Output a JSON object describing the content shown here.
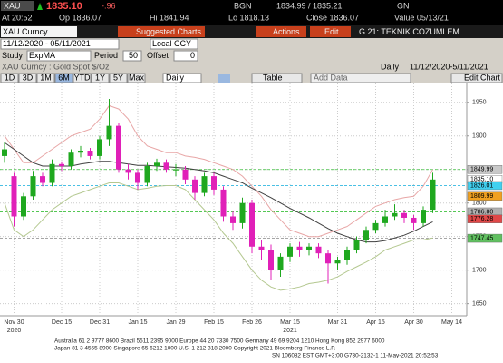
{
  "header": {
    "ticker": "XAU",
    "price": "1835.10",
    "change": "-.96",
    "source": "BGN",
    "bid_ask": "1834.99 / 1835.21",
    "source2": "GN",
    "at": "At 20:52",
    "open": "Op 1836.07",
    "high": "Hi 1841.94",
    "low": "Lo 1818.13",
    "close": "Close 1836.07",
    "value_date": "Value 05/13/21"
  },
  "toolbar": {
    "security": "XAU Curncy",
    "menu": [
      "Suggested Charts",
      "Actions",
      "Edit"
    ],
    "page_title": "G 21: TEKNIK COZUMLEM...",
    "date_range": "11/12/2020 - 05/11/2021",
    "currency": "Local CCY",
    "study_label": "Study",
    "study": "ExpMA",
    "period_label": "Period",
    "period": "50",
    "offset_label": "Offset",
    "offset": "0",
    "chart_caption": "XAU Curncy : Gold Spot  $/Oz",
    "frequency": "Daily",
    "range_caption": "11/12/2020-5/11/2021",
    "buttons": [
      "1D",
      "3D",
      "1M",
      "6M",
      "YTD",
      "1Y",
      "5Y",
      "Max"
    ],
    "frequency_select": "Daily",
    "table": "Table",
    "add_data": "Add Data",
    "edit_chart": "Edit Chart"
  },
  "chart_data": {
    "type": "candlestick",
    "categories": [
      null,
      "Nov 30",
      null,
      null,
      null,
      null,
      "Dec 15",
      null,
      null,
      null,
      "Dec 31",
      null,
      null,
      null,
      "Jan 15",
      null,
      null,
      null,
      "Jan 29",
      null,
      null,
      null,
      "Feb 15",
      null,
      null,
      null,
      "Feb 26",
      null,
      null,
      null,
      "Mar 15",
      null,
      null,
      null,
      null,
      "Mar 31",
      null,
      null,
      null,
      "Apr 15",
      null,
      null,
      null,
      "Apr 30",
      null,
      null,
      null,
      "May 14"
    ],
    "x_sublabels": [
      null,
      "2020",
      null,
      null,
      null,
      null,
      null,
      null,
      null,
      null,
      null,
      null,
      null,
      null,
      null,
      null,
      null,
      null,
      null,
      null,
      null,
      null,
      null,
      null,
      null,
      null,
      null,
      null,
      null,
      null,
      "2021",
      null,
      null,
      null,
      null,
      null,
      null,
      null,
      null,
      null,
      null,
      null,
      null,
      null,
      null,
      null,
      null,
      null
    ],
    "open": [
      1870,
      1840,
      1780,
      1810,
      1840,
      1830,
      1858,
      1855,
      1875,
      1878,
      1870,
      1895,
      1915,
      1850,
      1845,
      1830,
      1855,
      1860,
      1850,
      1850,
      1835,
      1815,
      1840,
      1820,
      1780,
      1770,
      1800,
      1735,
      1730,
      1700,
      1720,
      1735,
      1730,
      1735,
      1725,
      1710,
      1715,
      1730,
      1745,
      1760,
      1770,
      1780,
      1785,
      1778,
      1770,
      1790,
      null,
      null
    ],
    "high": [
      1890,
      1845,
      1815,
      1848,
      1845,
      1865,
      1862,
      1880,
      1885,
      1882,
      1900,
      1955,
      1920,
      1858,
      1850,
      1860,
      1866,
      1865,
      1858,
      1855,
      1840,
      1845,
      1845,
      1825,
      1788,
      1808,
      1805,
      1745,
      1738,
      1725,
      1740,
      1742,
      1740,
      1740,
      1730,
      1720,
      1735,
      1750,
      1765,
      1775,
      1790,
      1798,
      1790,
      1782,
      1795,
      1845,
      null,
      null
    ],
    "low": [
      1860,
      1765,
      1775,
      1805,
      1825,
      1825,
      1848,
      1850,
      1868,
      1865,
      1865,
      1885,
      1845,
      1835,
      1820,
      1825,
      1848,
      1845,
      1840,
      1828,
      1805,
      1810,
      1812,
      1772,
      1760,
      1762,
      1725,
      1715,
      1685,
      1690,
      1712,
      1720,
      1722,
      1718,
      1680,
      1700,
      1708,
      1725,
      1740,
      1755,
      1765,
      1775,
      1770,
      1760,
      1765,
      1785,
      null,
      null
    ],
    "close": [
      1880,
      1780,
      1810,
      1840,
      1830,
      1858,
      1855,
      1875,
      1878,
      1870,
      1895,
      1915,
      1850,
      1845,
      1830,
      1855,
      1860,
      1850,
      1850,
      1835,
      1815,
      1840,
      1820,
      1780,
      1770,
      1800,
      1735,
      1730,
      1700,
      1720,
      1735,
      1730,
      1735,
      1725,
      1710,
      1715,
      1730,
      1745,
      1760,
      1770,
      1780,
      1785,
      1778,
      1770,
      1790,
      1835,
      null,
      null
    ],
    "up_color": "#1fa81f",
    "down_color": "#e020b8",
    "series": [
      {
        "color": "#e8a6a6",
        "values": [
          1900,
          1880,
          1860,
          1860,
          1870,
          1880,
          1890,
          1900,
          1905,
          1910,
          1925,
          1945,
          1940,
          1925,
          1900,
          1885,
          1880,
          1875,
          1875,
          1870,
          1868,
          1865,
          1860,
          1855,
          1850,
          1840,
          1825,
          1810,
          1790,
          1775,
          1760,
          1755,
          1750,
          1750,
          1755,
          1760,
          1765,
          1775,
          1785,
          1795,
          1800,
          1805,
          1808,
          1810,
          1825,
          1850,
          null,
          null
        ]
      },
      {
        "color": "#b4c890",
        "values": [
          1800,
          1760,
          1750,
          1760,
          1775,
          1790,
          1800,
          1810,
          1815,
          1820,
          1825,
          1830,
          1830,
          1825,
          1820,
          1822,
          1825,
          1826,
          1826,
          1820,
          1805,
          1790,
          1775,
          1755,
          1740,
          1720,
          1700,
          1685,
          1675,
          1670,
          1672,
          1675,
          1680,
          1682,
          1685,
          1690,
          1698,
          1705,
          1712,
          1720,
          1730,
          1735,
          1740,
          1745,
          1745,
          1748,
          null,
          null
        ]
      },
      {
        "color": "#404040",
        "values": [
          1890,
          1880,
          1870,
          1860,
          1855,
          1855,
          1855,
          1855,
          1858,
          1860,
          1862,
          1862,
          1860,
          1858,
          1856,
          1856,
          1855,
          1854,
          1853,
          1852,
          1850,
          1848,
          1845,
          1840,
          1835,
          1830,
          1822,
          1815,
          1808,
          1800,
          1792,
          1785,
          1778,
          1770,
          1762,
          1755,
          1750,
          1745,
          1742,
          1742,
          1744,
          1748,
          1752,
          1758,
          1765,
          1772,
          null,
          null
        ]
      }
    ],
    "levels": [
      {
        "value": 1849.99,
        "color": "#3cc03c"
      },
      {
        "value": 1826.01,
        "color": "#30b8e0"
      },
      {
        "value": 1786.8,
        "color": "#3cc03c"
      },
      {
        "value": 1747.45,
        "color": "#999999"
      }
    ],
    "price_labels": [
      {
        "value": 1849.99,
        "label": "1849.99",
        "color": "#c8c8c8"
      },
      {
        "value": 1835.1,
        "label": "1835.10",
        "color": "#ffffff"
      },
      {
        "value": 1826.01,
        "label": "1826.01",
        "color": "#40d0f0"
      },
      {
        "value": 1809.99,
        "label": "1809.99",
        "color": "#f0a020"
      },
      {
        "value": 1786.8,
        "label": "1786.80",
        "color": "#b0b0b0"
      },
      {
        "value": 1776.28,
        "label": "1776.28",
        "color": "#e04848"
      },
      {
        "value": 1747.45,
        "label": "1747.45",
        "color": "#60c060"
      }
    ],
    "ylim": [
      1636,
      1974
    ],
    "yticks": [
      1650,
      1700,
      1750,
      1800,
      1850,
      1900,
      1950
    ],
    "grid": true
  },
  "footer": {
    "lines": [
      "Australia 61 2 9777 8600 Brazil 5511 2395 9000 Europe 44 20 7330 7500 Germany 49 69 9204 1210 Hong Kong 852 2977 6000",
      "Japan 81 3 4565 8900       Singapore 65 6212 1000       U.S. 1 212 318 2000       Copyright 2021 Bloomberg Finance L.P.",
      "SN 106082 EST  GMT+3:00 G730-2132-1 11-May-2021 20:52:53"
    ]
  }
}
